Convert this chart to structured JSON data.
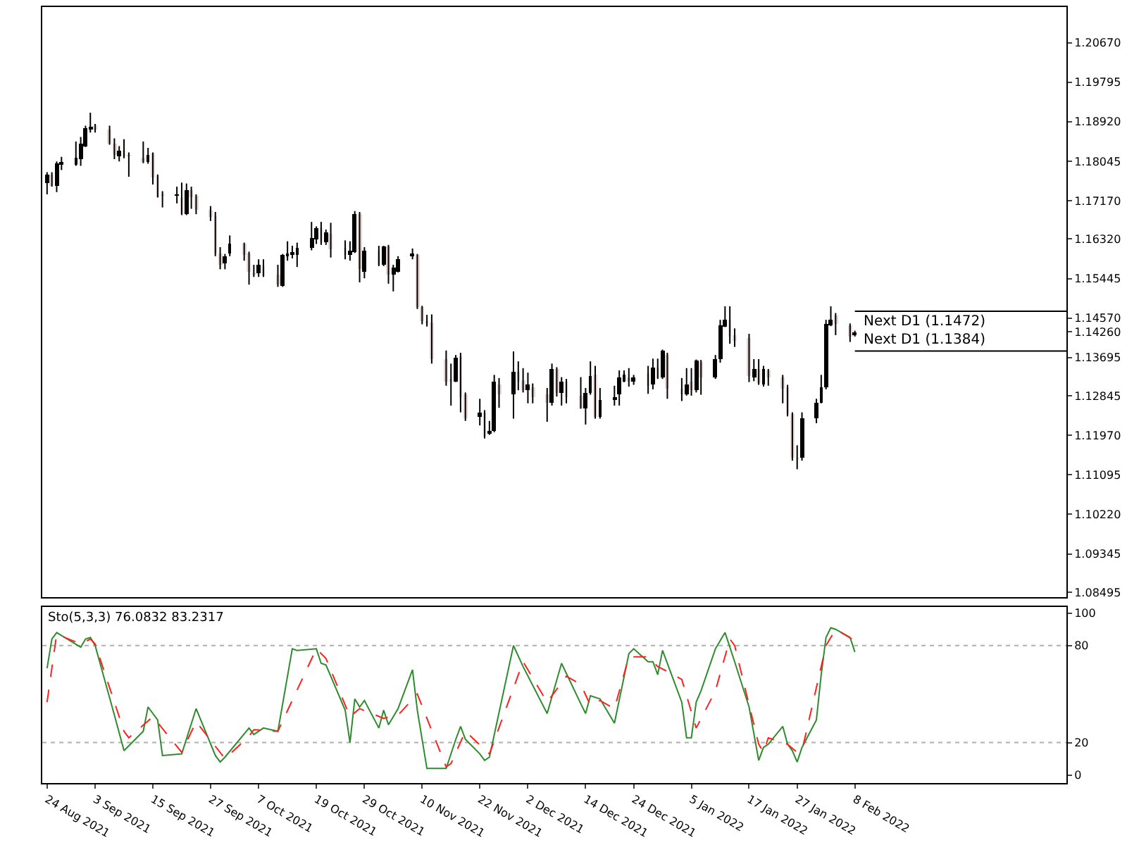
{
  "chart_data": [
    {
      "type": "candlestick",
      "x": [
        "2021-08-24",
        "2021-08-25",
        "2021-08-26",
        "2021-08-27",
        "2021-08-30",
        "2021-08-31",
        "2021-09-01",
        "2021-09-02",
        "2021-09-03",
        "2021-09-06",
        "2021-09-07",
        "2021-09-08",
        "2021-09-09",
        "2021-09-10",
        "2021-09-13",
        "2021-09-14",
        "2021-09-15",
        "2021-09-16",
        "2021-09-17",
        "2021-09-20",
        "2021-09-21",
        "2021-09-22",
        "2021-09-23",
        "2021-09-24",
        "2021-09-27",
        "2021-09-28",
        "2021-09-29",
        "2021-09-30",
        "2021-10-01",
        "2021-10-04",
        "2021-10-05",
        "2021-10-06",
        "2021-10-07",
        "2021-10-08",
        "2021-10-11",
        "2021-10-12",
        "2021-10-13",
        "2021-10-14",
        "2021-10-15",
        "2021-10-18",
        "2021-10-19",
        "2021-10-20",
        "2021-10-21",
        "2021-10-22",
        "2021-10-25",
        "2021-10-26",
        "2021-10-27",
        "2021-10-28",
        "2021-10-29",
        "2021-11-01",
        "2021-11-02",
        "2021-11-03",
        "2021-11-04",
        "2021-11-05",
        "2021-11-08",
        "2021-11-09",
        "2021-11-10",
        "2021-11-11",
        "2021-11-12",
        "2021-11-15",
        "2021-11-16",
        "2021-11-17",
        "2021-11-18",
        "2021-11-19",
        "2021-11-22",
        "2021-11-23",
        "2021-11-24",
        "2021-11-25",
        "2021-11-26",
        "2021-11-29",
        "2021-11-30",
        "2021-12-01",
        "2021-12-02",
        "2021-12-03",
        "2021-12-06",
        "2021-12-07",
        "2021-12-08",
        "2021-12-09",
        "2021-12-10",
        "2021-12-13",
        "2021-12-14",
        "2021-12-15",
        "2021-12-16",
        "2021-12-17",
        "2021-12-20",
        "2021-12-21",
        "2021-12-22",
        "2021-12-23",
        "2021-12-24",
        "2021-12-27",
        "2021-12-28",
        "2021-12-29",
        "2021-12-30",
        "2021-12-31",
        "2022-01-03",
        "2022-01-04",
        "2022-01-05",
        "2022-01-06",
        "2022-01-07",
        "2022-01-10",
        "2022-01-11",
        "2022-01-12",
        "2022-01-13",
        "2022-01-14",
        "2022-01-17",
        "2022-01-18",
        "2022-01-19",
        "2022-01-20",
        "2022-01-21",
        "2022-01-24",
        "2022-01-25",
        "2022-01-26",
        "2022-01-27",
        "2022-01-28",
        "2022-01-31",
        "2022-02-01",
        "2022-02-02",
        "2022-02-03",
        "2022-02-04",
        "2022-02-07",
        "2022-02-08"
      ],
      "ohlc": [
        [
          1.1755,
          1.178,
          1.1731,
          1.1775
        ],
        [
          1.1775,
          1.178,
          1.1748,
          1.1751
        ],
        [
          1.1751,
          1.1804,
          1.1736,
          1.1799
        ],
        [
          1.1798,
          1.1814,
          1.1785,
          1.18
        ],
        [
          1.1796,
          1.1848,
          1.1794,
          1.1812
        ],
        [
          1.1809,
          1.1858,
          1.1794,
          1.1843
        ],
        [
          1.1838,
          1.1883,
          1.1836,
          1.1878
        ],
        [
          1.1877,
          1.1912,
          1.1868,
          1.1879
        ],
        [
          1.1884,
          1.1887,
          1.1868,
          1.1873
        ],
        [
          1.1875,
          1.1883,
          1.1841,
          1.1843
        ],
        [
          1.1843,
          1.1855,
          1.1809,
          1.1817
        ],
        [
          1.1816,
          1.1838,
          1.1804,
          1.1827
        ],
        [
          1.1827,
          1.1853,
          1.1811,
          1.1814
        ],
        [
          1.1818,
          1.1824,
          1.177,
          1.1816
        ],
        [
          1.1812,
          1.1848,
          1.18,
          1.1802
        ],
        [
          1.1802,
          1.1834,
          1.1799,
          1.1819
        ],
        [
          1.1822,
          1.1824,
          1.1753,
          1.177
        ],
        [
          1.1772,
          1.1775,
          1.1724,
          1.1726
        ],
        [
          1.173,
          1.1738,
          1.1702,
          1.1728
        ],
        [
          1.1728,
          1.1748,
          1.1711,
          1.173
        ],
        [
          1.1726,
          1.1757,
          1.1685,
          1.1687
        ],
        [
          1.1687,
          1.1755,
          1.1685,
          1.1741
        ],
        [
          1.1739,
          1.1748,
          1.1699,
          1.1724
        ],
        [
          1.1728,
          1.1731,
          1.1687,
          1.1697
        ],
        [
          1.1697,
          1.1705,
          1.1672,
          1.1682
        ],
        [
          1.1685,
          1.1692,
          1.1594,
          1.1599
        ],
        [
          1.1599,
          1.1614,
          1.1565,
          1.1575
        ],
        [
          1.1578,
          1.1599,
          1.1565,
          1.1594
        ],
        [
          1.1599,
          1.164,
          1.1594,
          1.1621
        ],
        [
          1.1622,
          1.1624,
          1.1584,
          1.1597
        ],
        [
          1.1601,
          1.1604,
          1.1531,
          1.1558
        ],
        [
          1.1556,
          1.1575,
          1.1548,
          1.1554
        ],
        [
          1.1555,
          1.1587,
          1.1548,
          1.1575
        ],
        [
          1.1572,
          1.1587,
          1.1548,
          1.155
        ],
        [
          1.1552,
          1.1575,
          1.1526,
          1.1531
        ],
        [
          1.1529,
          1.1599,
          1.1526,
          1.1597
        ],
        [
          1.1596,
          1.1627,
          1.1584,
          1.1598
        ],
        [
          1.1598,
          1.1617,
          1.1589,
          1.16
        ],
        [
          1.1597,
          1.1624,
          1.157,
          1.1611
        ],
        [
          1.1611,
          1.167,
          1.1607,
          1.1634
        ],
        [
          1.1631,
          1.166,
          1.1621,
          1.1655
        ],
        [
          1.1656,
          1.167,
          1.1619,
          1.1624
        ],
        [
          1.1624,
          1.1653,
          1.1619,
          1.1648
        ],
        [
          1.1645,
          1.1668,
          1.1591,
          1.1609
        ],
        [
          1.1611,
          1.1629,
          1.1587,
          1.1597
        ],
        [
          1.1597,
          1.1627,
          1.1584,
          1.1607
        ],
        [
          1.1604,
          1.1694,
          1.1601,
          1.1687
        ],
        [
          1.1687,
          1.1692,
          1.1536,
          1.1565
        ],
        [
          1.156,
          1.1614,
          1.1545,
          1.1607
        ],
        [
          1.1607,
          1.1617,
          1.1572,
          1.1575
        ],
        [
          1.1575,
          1.1617,
          1.1572,
          1.1614
        ],
        [
          1.1614,
          1.1619,
          1.1533,
          1.1552
        ],
        [
          1.1552,
          1.1575,
          1.1516,
          1.1568
        ],
        [
          1.156,
          1.1594,
          1.1558,
          1.1589
        ],
        [
          1.1595,
          1.1611,
          1.1587,
          1.1597
        ],
        [
          1.1596,
          1.1599,
          1.1477,
          1.148
        ],
        [
          1.1482,
          1.1484,
          1.1443,
          1.1451
        ],
        [
          1.1449,
          1.1464,
          1.1438,
          1.1447
        ],
        [
          1.1448,
          1.1465,
          1.1356,
          1.1365
        ],
        [
          1.1365,
          1.1385,
          1.1307,
          1.1317
        ],
        [
          1.132,
          1.1356,
          1.1263,
          1.1318
        ],
        [
          1.1317,
          1.1375,
          1.1315,
          1.137
        ],
        [
          1.1373,
          1.138,
          1.1248,
          1.1283
        ],
        [
          1.1289,
          1.1292,
          1.1229,
          1.1234
        ],
        [
          1.1237,
          1.1278,
          1.1219,
          1.1248
        ],
        [
          1.1248,
          1.1253,
          1.119,
          1.1195
        ],
        [
          1.12,
          1.1229,
          1.1198,
          1.1207
        ],
        [
          1.1206,
          1.1331,
          1.1204,
          1.1317
        ],
        [
          1.1309,
          1.1324,
          1.1258,
          1.1289
        ],
        [
          1.1289,
          1.1383,
          1.1234,
          1.1338
        ],
        [
          1.1338,
          1.1361,
          1.1297,
          1.1317
        ],
        [
          1.1319,
          1.1346,
          1.1292,
          1.1297
        ],
        [
          1.1297,
          1.1336,
          1.1268,
          1.1309
        ],
        [
          1.1302,
          1.1312,
          1.1268,
          1.1283
        ],
        [
          1.1287,
          1.1302,
          1.1227,
          1.1268
        ],
        [
          1.1268,
          1.1356,
          1.1263,
          1.1344
        ],
        [
          1.1344,
          1.1348,
          1.1283,
          1.1292
        ],
        [
          1.1292,
          1.1326,
          1.1263,
          1.1317
        ],
        [
          1.1315,
          1.1322,
          1.1268,
          1.1283
        ],
        [
          1.1285,
          1.1326,
          1.1256,
          1.1258
        ],
        [
          1.1258,
          1.1302,
          1.1221,
          1.1292
        ],
        [
          1.1292,
          1.1361,
          1.1287,
          1.1328
        ],
        [
          1.1331,
          1.1351,
          1.1234,
          1.1237
        ],
        [
          1.1239,
          1.1302,
          1.1234,
          1.1276
        ],
        [
          1.1276,
          1.1307,
          1.1263,
          1.1283
        ],
        [
          1.1287,
          1.1341,
          1.1263,
          1.1326
        ],
        [
          1.1317,
          1.1341,
          1.1315,
          1.1331
        ],
        [
          1.1326,
          1.1346,
          1.1305,
          1.1315
        ],
        [
          1.1315,
          1.1331,
          1.1309,
          1.1326
        ],
        [
          1.1334,
          1.1351,
          1.1289,
          1.1307
        ],
        [
          1.1309,
          1.1367,
          1.1299,
          1.1348
        ],
        [
          1.1348,
          1.1367,
          1.1322,
          1.1326
        ],
        [
          1.1324,
          1.1387,
          1.1322,
          1.1385
        ],
        [
          1.1375,
          1.138,
          1.1278,
          1.1299
        ],
        [
          1.1299,
          1.1324,
          1.1273,
          1.1287
        ],
        [
          1.1287,
          1.1346,
          1.1285,
          1.1309
        ],
        [
          1.1315,
          1.1346,
          1.1285,
          1.1297
        ],
        [
          1.1297,
          1.1365,
          1.1292,
          1.1364
        ],
        [
          1.1361,
          1.1364,
          1.1287,
          1.1324
        ],
        [
          1.1324,
          1.1375,
          1.1322,
          1.1367
        ],
        [
          1.1365,
          1.1453,
          1.1358,
          1.1442
        ],
        [
          1.1439,
          1.1483,
          1.1437,
          1.1453
        ],
        [
          1.1453,
          1.1483,
          1.14,
          1.1416
        ],
        [
          1.1419,
          1.1434,
          1.1393,
          1.1405
        ],
        [
          1.1414,
          1.1422,
          1.1315,
          1.1328
        ],
        [
          1.1325,
          1.1366,
          1.1317,
          1.1344
        ],
        [
          1.1344,
          1.1366,
          1.1309,
          1.1312
        ],
        [
          1.1309,
          1.1351,
          1.1305,
          1.1344
        ],
        [
          1.1341,
          1.1344,
          1.1307,
          1.1326
        ],
        [
          1.1325,
          1.1331,
          1.1268,
          1.1299
        ],
        [
          1.1305,
          1.1309,
          1.1239,
          1.1243
        ],
        [
          1.1243,
          1.1248,
          1.1141,
          1.1146
        ],
        [
          1.1147,
          1.1175,
          1.1122,
          1.1145
        ],
        [
          1.1146,
          1.1248,
          1.1141,
          1.1234
        ],
        [
          1.1234,
          1.1278,
          1.1224,
          1.127
        ],
        [
          1.127,
          1.1331,
          1.1268,
          1.1305
        ],
        [
          1.1302,
          1.1453,
          1.1299,
          1.1444
        ],
        [
          1.1442,
          1.1483,
          1.1439,
          1.1453
        ],
        [
          1.1463,
          1.1468,
          1.1419,
          1.1444
        ],
        [
          1.1442,
          1.1445,
          1.1404,
          1.1416
        ],
        [
          1.1419,
          1.1429,
          1.1416,
          1.1426
        ]
      ],
      "colors": [
        "#000000",
        "#e6d6d6",
        "#000000",
        "#000000",
        "#000000",
        "#000000",
        "#000000",
        "#000000",
        "#e6d6d6",
        "#e6d6d6",
        "#e6d6d6",
        "#000000",
        "#e6d6d6",
        "#e6d6d6",
        "#e6d6d6",
        "#000000",
        "#e6d6d6",
        "#e6d6d6",
        "#e6d6d6",
        "#000000",
        "#e6d6d6",
        "#000000",
        "#e6d6d6",
        "#e6d6d6",
        "#e6d6d6",
        "#e6d6d6",
        "#e6d6d6",
        "#000000",
        "#000000",
        "#e6d6d6",
        "#e6d6d6",
        "#e6d6d6",
        "#000000",
        "#e6d6d6",
        "#e6d6d6",
        "#000000",
        "#000000",
        "#000000",
        "#000000",
        "#000000",
        "#000000",
        "#e6d6d6",
        "#000000",
        "#e6d6d6",
        "#e6d6d6",
        "#000000",
        "#000000",
        "#e6d6d6",
        "#000000",
        "#e6d6d6",
        "#000000",
        "#e6d6d6",
        "#000000",
        "#000000",
        "#000000",
        "#e6d6d6",
        "#e6d6d6",
        "#e6d6d6",
        "#e6d6d6",
        "#e6d6d6",
        "#e6d6d6",
        "#000000",
        "#e6d6d6",
        "#e6d6d6",
        "#000000",
        "#e6d6d6",
        "#000000",
        "#000000",
        "#e6d6d6",
        "#000000",
        "#e6d6d6",
        "#e6d6d6",
        "#000000",
        "#e6d6d6",
        "#e6d6d6",
        "#000000",
        "#e6d6d6",
        "#000000",
        "#e6d6d6",
        "#e6d6d6",
        "#000000",
        "#000000",
        "#e6d6d6",
        "#000000",
        "#000000",
        "#000000",
        "#000000",
        "#e6d6d6",
        "#000000",
        "#e6d6d6",
        "#000000",
        "#e6d6d6",
        "#000000",
        "#e6d6d6",
        "#e6d6d6",
        "#000000",
        "#e6d6d6",
        "#000000",
        "#e6d6d6",
        "#000000",
        "#000000",
        "#000000",
        "#e6d6d6",
        "#e6d6d6",
        "#e6d6d6",
        "#000000",
        "#e6d6d6",
        "#000000",
        "#e6d6d6",
        "#e6d6d6",
        "#e6d6d6",
        "#e6d6d6",
        "#e6d6d6",
        "#000000",
        "#000000",
        "#000000",
        "#000000",
        "#000000",
        "#e6d6d6",
        "#e6d6d6",
        "#000000"
      ],
      "xlim": [
        "2021-08-23",
        "2022-03-24"
      ],
      "ylim": [
        1.0838,
        1.2146
      ],
      "yticks": [
        {
          "value": 1.2067,
          "label": "1.20670"
        },
        {
          "value": 1.19795,
          "label": "1.19795"
        },
        {
          "value": 1.1892,
          "label": "1.18920"
        },
        {
          "value": 1.18045,
          "label": "1.18045"
        },
        {
          "value": 1.1717,
          "label": "1.17170"
        },
        {
          "value": 1.1632,
          "label": "1.16320"
        },
        {
          "value": 1.15445,
          "label": "1.15445"
        },
        {
          "value": 1.1457,
          "label": "1.14570"
        },
        {
          "value": 1.1426,
          "label": "1.14260"
        },
        {
          "value": 1.13695,
          "label": "1.13695"
        },
        {
          "value": 1.12845,
          "label": "1.12845"
        },
        {
          "value": 1.1197,
          "label": "1.11970"
        },
        {
          "value": 1.11095,
          "label": "1.11095"
        },
        {
          "value": 1.1022,
          "label": "1.10220"
        },
        {
          "value": 1.09345,
          "label": "1.09345"
        },
        {
          "value": 1.08495,
          "label": "1.08495"
        }
      ],
      "tick_labels": "y",
      "ref_lines": [
        {
          "axis": "y",
          "value": 1.1472,
          "label": "Next D1 (1.1472)",
          "color": "#000000"
        },
        {
          "axis": "y",
          "value": 1.1384,
          "label": "Next D1 (1.1384)",
          "color": "#000000"
        }
      ]
    },
    {
      "type": "line",
      "title": "Sto(5,3,3) 76.0832 83.2317",
      "series": [
        {
          "color": "#2e8b2e",
          "line_style": "solid",
          "x": [
            "2021-08-24",
            "2021-08-25",
            "2021-08-26",
            "2021-08-31",
            "2021-09-01",
            "2021-09-02",
            "2021-09-03",
            "2021-09-07",
            "2021-09-09",
            "2021-09-13",
            "2021-09-14",
            "2021-09-16",
            "2021-09-17",
            "2021-09-21",
            "2021-09-24",
            "2021-09-28",
            "2021-09-29",
            "2021-09-30",
            "2021-10-05",
            "2021-10-06",
            "2021-10-08",
            "2021-10-11",
            "2021-10-14",
            "2021-10-15",
            "2021-10-19",
            "2021-10-20",
            "2021-10-21",
            "2021-10-25",
            "2021-10-26",
            "2021-10-27",
            "2021-10-28",
            "2021-10-29",
            "2021-11-01",
            "2021-11-02",
            "2021-11-03",
            "2021-11-05",
            "2021-11-08",
            "2021-11-09",
            "2021-11-11",
            "2021-11-15",
            "2021-11-17",
            "2021-11-18",
            "2021-11-19",
            "2021-11-22",
            "2021-11-23",
            "2021-11-24",
            "2021-11-29",
            "2021-12-01",
            "2021-12-06",
            "2021-12-09",
            "2021-12-13",
            "2021-12-14",
            "2021-12-15",
            "2021-12-17",
            "2021-12-20",
            "2021-12-23",
            "2021-12-24",
            "2021-12-27",
            "2021-12-28",
            "2021-12-29",
            "2021-12-30",
            "2022-01-03",
            "2022-01-04",
            "2022-01-05",
            "2022-01-06",
            "2022-01-07",
            "2022-01-10",
            "2022-01-12",
            "2022-01-14",
            "2022-01-17",
            "2022-01-19",
            "2022-01-20",
            "2022-01-21",
            "2022-01-24",
            "2022-01-25",
            "2022-01-26",
            "2022-01-27",
            "2022-01-28",
            "2022-01-31",
            "2022-02-01",
            "2022-02-02",
            "2022-02-03",
            "2022-02-04",
            "2022-02-07",
            "2022-02-08"
          ],
          "values": [
            66,
            84,
            88,
            79,
            84,
            85,
            80,
            37,
            15,
            27,
            42,
            34,
            12,
            13,
            41,
            12,
            8,
            11,
            29,
            25,
            29,
            27,
            78,
            77,
            78,
            69,
            68,
            40,
            20,
            47,
            42,
            46,
            29,
            40,
            31,
            41,
            65,
            40,
            4,
            4,
            22,
            30,
            22,
            13,
            9,
            11,
            80,
            67,
            38,
            69,
            44,
            38,
            49,
            47,
            32,
            75,
            78,
            70,
            70,
            62,
            77,
            45,
            23,
            23,
            45,
            52,
            78,
            88,
            70,
            42,
            9,
            17,
            19,
            30,
            19,
            15,
            8,
            17,
            34,
            62,
            85,
            91,
            90,
            85,
            76
          ]
        },
        {
          "color": "#ff2020",
          "line_style": "dashed",
          "x": [
            "2021-08-24",
            "2021-08-26",
            "2021-08-31",
            "2021-09-02",
            "2021-09-03",
            "2021-09-09",
            "2021-09-10",
            "2021-09-15",
            "2021-09-21",
            "2021-09-24",
            "2021-09-30",
            "2021-10-05",
            "2021-10-06",
            "2021-10-11",
            "2021-10-19",
            "2021-10-21",
            "2021-10-26",
            "2021-10-28",
            "2021-11-02",
            "2021-11-05",
            "2021-11-09",
            "2021-11-15",
            "2021-11-16",
            "2021-11-19",
            "2021-11-24",
            "2021-12-01",
            "2021-12-06",
            "2021-12-10",
            "2021-12-13",
            "2021-12-15",
            "2021-12-17",
            "2021-12-20",
            "2021-12-23",
            "2021-12-27",
            "2021-12-29",
            "2021-12-31",
            "2022-01-03",
            "2022-01-06",
            "2022-01-10",
            "2022-01-13",
            "2022-01-14",
            "2022-01-19",
            "2022-01-20",
            "2022-01-21",
            "2022-01-25",
            "2022-01-27",
            "2022-01-28",
            "2022-02-02",
            "2022-02-04",
            "2022-02-08"
          ],
          "values": [
            45,
            87,
            81,
            84,
            81,
            27,
            23,
            36,
            14,
            33,
            10,
            24,
            28,
            27,
            78,
            72,
            36,
            41,
            35,
            37,
            50,
            5,
            7,
            27,
            13,
            70,
            45,
            61,
            56,
            43,
            46,
            41,
            73,
            73,
            67,
            64,
            59,
            29,
            52,
            84,
            80,
            19,
            14,
            23,
            19,
            14,
            15,
            80,
            90,
            83
          ]
        }
      ],
      "xlim": [
        "2021-08-23",
        "2022-03-24"
      ],
      "xticks": [
        {
          "value": "2021-08-24",
          "label": "24 Aug 2021"
        },
        {
          "value": "2021-09-03",
          "label": "3 Sep 2021"
        },
        {
          "value": "2021-09-15",
          "label": "15 Sep 2021"
        },
        {
          "value": "2021-09-27",
          "label": "27 Sep 2021"
        },
        {
          "value": "2021-10-07",
          "label": "7 Oct 2021"
        },
        {
          "value": "2021-10-19",
          "label": "19 Oct 2021"
        },
        {
          "value": "2021-10-29",
          "label": "29 Oct 2021"
        },
        {
          "value": "2021-11-10",
          "label": "10 Nov 2021"
        },
        {
          "value": "2021-11-22",
          "label": "22 Nov 2021"
        },
        {
          "value": "2021-12-02",
          "label": "2 Dec 2021"
        },
        {
          "value": "2021-12-14",
          "label": "14 Dec 2021"
        },
        {
          "value": "2021-12-24",
          "label": "24 Dec 2021"
        },
        {
          "value": "2022-01-05",
          "label": "5 Jan 2022"
        },
        {
          "value": "2022-01-17",
          "label": "17 Jan 2022"
        },
        {
          "value": "2022-01-27",
          "label": "27 Jan 2022"
        },
        {
          "value": "2022-02-08",
          "label": "8 Feb 2022"
        }
      ],
      "ylim": [
        -5,
        104
      ],
      "yticks": [
        0,
        20,
        80,
        100
      ],
      "ref_lines": [
        {
          "axis": "y",
          "value": 80,
          "color": "#b0b0b0",
          "line_style": "dotted"
        },
        {
          "axis": "y",
          "value": 20,
          "color": "#b0b0b0",
          "line_style": "dotted"
        }
      ]
    }
  ]
}
